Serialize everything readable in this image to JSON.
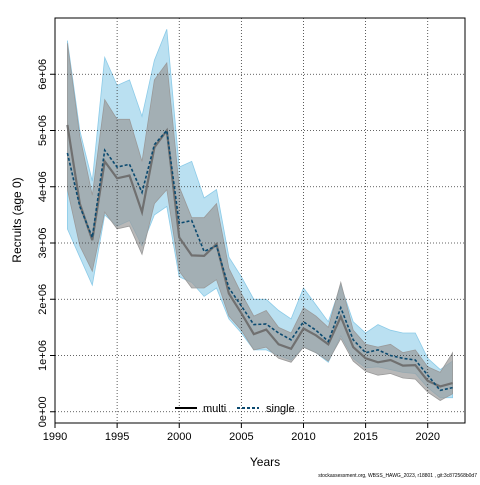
{
  "chart_data": {
    "type": "area",
    "title": "",
    "xlabel": "Years",
    "ylabel": "Recruits (age 0)",
    "xlim": [
      1990,
      2023
    ],
    "ylim": [
      -200000,
      7000000
    ],
    "grid": true,
    "x_ticks": [
      1990,
      1995,
      2000,
      2005,
      2010,
      2015,
      2020
    ],
    "x_tick_labels": [
      "1990",
      "1995",
      "2000",
      "2005",
      "2010",
      "2015",
      "2020"
    ],
    "y_ticks": [
      0,
      1000000,
      2000000,
      3000000,
      4000000,
      5000000,
      6000000
    ],
    "y_tick_labels": [
      "0e+00",
      "1e+06",
      "2e+06",
      "3e+06",
      "4e+06",
      "5e+06",
      "6e+06"
    ],
    "legend": {
      "placement": "bottom-center",
      "entries": [
        "multi",
        "single"
      ]
    },
    "x": [
      1991,
      1992,
      1993,
      1994,
      1995,
      1996,
      1997,
      1998,
      1999,
      2000,
      2001,
      2002,
      2003,
      2004,
      2005,
      2006,
      2007,
      2008,
      2009,
      2010,
      2011,
      2012,
      2013,
      2014,
      2015,
      2016,
      2017,
      2018,
      2019,
      2020,
      2021,
      2022
    ],
    "series": [
      {
        "name": "multi",
        "values": [
          5100000,
          3700000,
          3050000,
          4450000,
          4150000,
          4200000,
          3550000,
          4700000,
          5000000,
          3100000,
          2780000,
          2770000,
          2980000,
          2100000,
          1750000,
          1380000,
          1460000,
          1200000,
          1120000,
          1480000,
          1360000,
          1200000,
          1690000,
          1150000,
          950000,
          880000,
          920000,
          820000,
          830000,
          550000,
          450000,
          510000
        ],
        "lower": [
          3950000,
          2950000,
          2500000,
          3550000,
          3250000,
          3300000,
          2800000,
          3700000,
          3950000,
          2500000,
          2200000,
          2200000,
          2350000,
          1700000,
          1450000,
          1100000,
          1150000,
          950000,
          880000,
          1150000,
          1050000,
          900000,
          1300000,
          900000,
          720000,
          650000,
          680000,
          600000,
          580000,
          350000,
          200000,
          320000
        ],
        "upper": [
          6550000,
          4900000,
          3850000,
          5550000,
          5200000,
          5200000,
          4450000,
          5900000,
          6200000,
          4000000,
          3450000,
          3450000,
          3700000,
          2550000,
          2100000,
          1700000,
          1800000,
          1500000,
          1400000,
          1850000,
          1700000,
          1500000,
          2300000,
          1450000,
          1200000,
          1150000,
          1200000,
          1050000,
          1100000,
          800000,
          700000,
          1050000
        ],
        "color": "#808080",
        "band_color": "#9a9a9a"
      },
      {
        "name": "single",
        "values": [
          4600000,
          3650000,
          3100000,
          4650000,
          4350000,
          4400000,
          3900000,
          4750000,
          5000000,
          3350000,
          3400000,
          2850000,
          2950000,
          2200000,
          1880000,
          1550000,
          1560000,
          1400000,
          1280000,
          1600000,
          1450000,
          1250000,
          1850000,
          1280000,
          1050000,
          1100000,
          1000000,
          950000,
          920000,
          650000,
          380000,
          430000
        ],
        "lower": [
          3250000,
          2750000,
          2250000,
          3500000,
          3300000,
          3400000,
          2950000,
          3500000,
          3650000,
          2400000,
          2300000,
          2050000,
          2200000,
          1650000,
          1400000,
          1100000,
          1100000,
          1000000,
          920000,
          1150000,
          1050000,
          880000,
          1350000,
          950000,
          780000,
          800000,
          750000,
          700000,
          680000,
          430000,
          250000,
          250000
        ],
        "upper": [
          6600000,
          5000000,
          4100000,
          6300000,
          5800000,
          5900000,
          5250000,
          6250000,
          6800000,
          4350000,
          4450000,
          3800000,
          3950000,
          2750000,
          2400000,
          2000000,
          2000000,
          1800000,
          1650000,
          2200000,
          1900000,
          1600000,
          2250000,
          1600000,
          1400000,
          1550000,
          1450000,
          1400000,
          1400000,
          950000,
          750000,
          900000
        ],
        "color": "#0b4a70",
        "band_color": "#8ccbe8"
      }
    ]
  },
  "footer": {
    "note": "stockassessment.org, WBSS_HAWG_2023, r18801 , git:3c872568b0d7"
  }
}
